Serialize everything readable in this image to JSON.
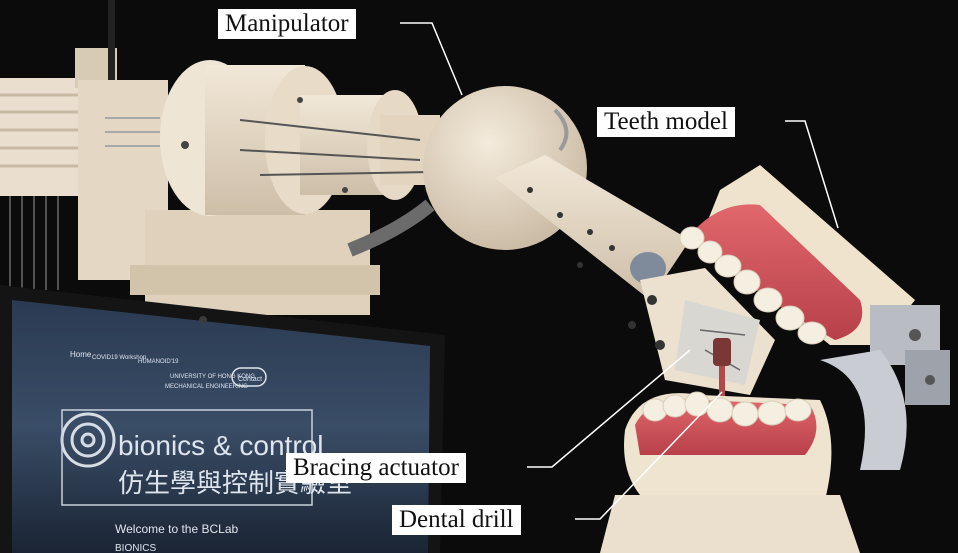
{
  "labels": {
    "manipulator": "Manipulator",
    "teeth_model": "Teeth model",
    "bracing_actuator": "Bracing actuator",
    "dental_drill": "Dental drill"
  },
  "laptop_screen": {
    "nav_home": "Home",
    "nav_covid": "COVID19 Workshop",
    "nav_humanoid": "HUMANOID'19",
    "university": "UNIVERSITY OF HONG KONG",
    "department": "MECHANICAL ENGINEERING",
    "contact_button": "Contact",
    "lab_name_en": "bionics & control",
    "lab_name_zh": "仿生學與控制實驗室",
    "welcome": "Welcome to the BCLab",
    "bottom_text": "BIONICS"
  },
  "colors": {
    "background": "#0b0b0b",
    "robot_body": "#e9dccb",
    "gum": "#d9545a",
    "tooth": "#f5efe2",
    "screen": "#1c2838"
  }
}
